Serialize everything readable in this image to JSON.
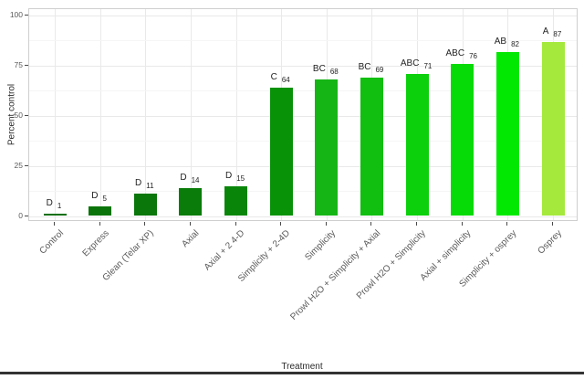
{
  "chart_data": {
    "type": "bar",
    "title": "",
    "xlabel": "Treatment",
    "ylabel": "Percent control",
    "ylim": [
      0,
      100
    ],
    "yticks": [
      0,
      25,
      50,
      75,
      100
    ],
    "minor_yticks": [
      12.5,
      37.5,
      62.5,
      87.5
    ],
    "grid": "on",
    "legend": "none",
    "categories": [
      "Control",
      "Express",
      "Glean (Telar XP)",
      "Axial",
      "Axial + 2 4-D",
      "Simplicity + 2-4D",
      "Simplicity",
      "Prowl H2O + Simplicity + Axial",
      "Prowl H2O + Simplicity",
      "Axial + simplicity",
      "Simplicity + osprey",
      "Osprey"
    ],
    "values": [
      1,
      5,
      11,
      14,
      15,
      64,
      68,
      69,
      71,
      76,
      82,
      87
    ],
    "significance_letters": [
      "D",
      "D",
      "D",
      "D",
      "D",
      "C",
      "BC",
      "BC",
      "ABC",
      "ABC",
      "AB",
      "A"
    ],
    "bar_colors": [
      "#0b700b",
      "#0a740a",
      "#0a770a",
      "#097c09",
      "#098609",
      "#089208",
      "#16b516",
      "#10bf10",
      "#0cd00c",
      "#07db07",
      "#02e802",
      "#a4e93c"
    ],
    "colors": {
      "grid_major": "#e9e9e9",
      "grid_minor": "#f5f5f5",
      "panel_border": "#cfcfcf",
      "axis_text": "#5a5a5a",
      "axis_title": "#2b2b2b",
      "bar_label": "#1f1f1f",
      "background": "#ffffff",
      "bottom_rule": "#333333"
    }
  }
}
